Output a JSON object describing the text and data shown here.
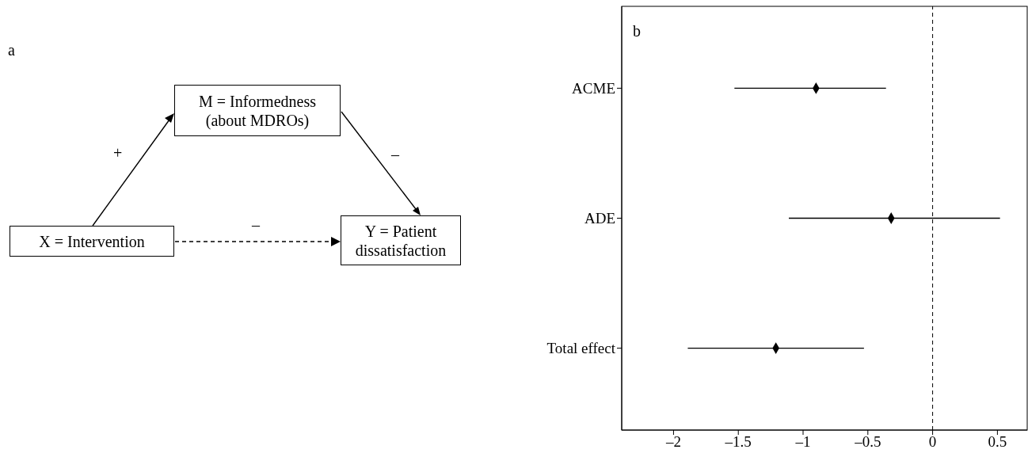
{
  "chart_data": [
    {
      "type": "other",
      "annotations": [
        "a",
        "M = Informedness (about MDROs)",
        "X = Intervention",
        "Y = Patient dissatisfaction",
        "+",
        "–",
        "–"
      ]
    },
    {
      "type": "scatter",
      "categories": [
        "ACME",
        "ADE",
        "Total effect"
      ],
      "color": "#000000",
      "values": [
        -0.9,
        -0.32,
        -1.21
      ],
      "errors": [
        [
          -1.53,
          -0.36
        ],
        [
          -1.11,
          0.52
        ],
        [
          -1.89,
          -0.53
        ]
      ],
      "orientation": "horizontal",
      "xlim": [
        -2.4,
        0.73
      ],
      "xticks": [
        {
          "value": -2,
          "label": "–2"
        },
        {
          "value": -1.5,
          "label": "–1.5"
        },
        {
          "value": -1,
          "label": "–1"
        },
        {
          "value": -0.5,
          "label": "–0.5"
        },
        0,
        0.5
      ],
      "ref_lines": [
        {
          "axis": "x",
          "value": 0,
          "line_style": "dashed",
          "color": "#000000"
        }
      ],
      "marker": "diamond",
      "annotations": [
        "b"
      ]
    }
  ]
}
